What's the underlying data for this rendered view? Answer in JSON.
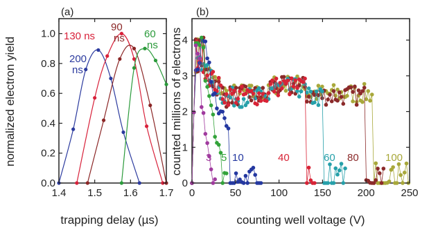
{
  "chart_data": [
    {
      "panel": "(a)",
      "type": "line",
      "xlabel": "trapping delay (µs)",
      "ylabel": "normalized electron yield",
      "xlim": [
        1.4,
        1.7
      ],
      "ylim": [
        0,
        1.1
      ],
      "xticks": [
        "1.4",
        "1.5",
        "1.6",
        "1.7"
      ],
      "yticks": [
        "0.0",
        "0.2",
        "0.4",
        "0.6",
        "0.8",
        "1.0"
      ],
      "grid": false,
      "series": [
        {
          "color": "#2b3a9e",
          "x": [
            1.4,
            1.44,
            1.475,
            1.51,
            1.545,
            1.58,
            1.625
          ],
          "y": [
            0.0,
            0.36,
            0.76,
            0.89,
            0.7,
            0.34,
            0.0
          ]
        },
        {
          "color": "#d8213a",
          "x": [
            1.45,
            1.5,
            1.535,
            1.575,
            1.61,
            1.645,
            1.69
          ],
          "y": [
            0.0,
            0.57,
            0.85,
            1.0,
            0.83,
            0.38,
            0.0
          ]
        },
        {
          "color": "#8b2626",
          "x": [
            1.48,
            1.525,
            1.57,
            1.61,
            1.655,
            1.7
          ],
          "y": [
            0.0,
            0.42,
            0.83,
            0.9,
            0.52,
            0.0
          ]
        },
        {
          "color": "#2a9a3a",
          "x": [
            1.575,
            1.61,
            1.64,
            1.67,
            1.7
          ],
          "y": [
            0.0,
            0.77,
            0.9,
            0.82,
            0.66
          ]
        }
      ],
      "annotations": [
        {
          "lines": [
            "200",
            "ns"
          ],
          "color": "#2b3a9e"
        },
        {
          "lines": [
            "130 ns"
          ],
          "color": "#d8213a"
        },
        {
          "lines": [
            "90",
            "ns"
          ],
          "color": "#8b2626"
        },
        {
          "lines": [
            "60",
            "ns"
          ],
          "color": "#2a9a3a"
        }
      ]
    },
    {
      "panel": "(b)",
      "type": "scatter",
      "xlabel": "counting well voltage (V)",
      "ylabel": "counted millions of electrons",
      "xlim": [
        0,
        250
      ],
      "ylim": [
        0,
        4.6
      ],
      "xticks": [
        "0",
        "50",
        "100",
        "150",
        "200",
        "250"
      ],
      "yticks": [
        "0",
        "1",
        "2",
        "3",
        "4"
      ],
      "grid": false,
      "series": [
        {
          "color": "#a8a83a",
          "cutoff": 100,
          "plateau": 2.5,
          "tail_to": 250
        },
        {
          "color": "#8b2a2a",
          "cutoff": 80,
          "plateau": 2.45,
          "tail_to": 222
        },
        {
          "color": "#26a0aa",
          "cutoff": 60,
          "plateau": 2.4,
          "tail_to": 178
        },
        {
          "color": "#d82336",
          "cutoff": 40,
          "plateau": 2.45,
          "tail_to": 142
        },
        {
          "color": "#2438a0",
          "cutoff": 10,
          "plateau": 3.0,
          "tail_to": 80
        },
        {
          "color": "#33a33a",
          "cutoff": 5,
          "plateau": 2.8,
          "tail_to": 40
        },
        {
          "color": "#a03a9e",
          "cutoff": 3,
          "plateau": 2.4,
          "tail_to": 28
        }
      ],
      "annotations": [
        {
          "text": "3",
          "color": "#a03a9e"
        },
        {
          "text": "5",
          "color": "#33a33a"
        },
        {
          "text": "10",
          "color": "#2438a0"
        },
        {
          "text": "40",
          "color": "#d82336"
        },
        {
          "text": "60",
          "color": "#26a0aa"
        },
        {
          "text": "80",
          "color": "#8b2a2a"
        },
        {
          "text": "100",
          "color": "#a8a83a"
        }
      ]
    }
  ]
}
